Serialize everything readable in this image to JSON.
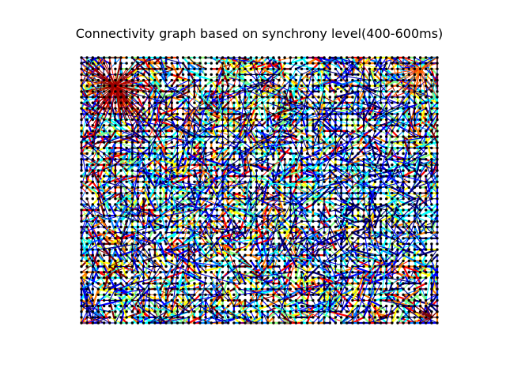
{
  "window": {
    "title": "Connectivity graph based on synchrony level(400-600ms)"
  },
  "chart_data": {
    "type": "scatter",
    "title": "Connectivity graph based on synchrony level(400-600ms)",
    "xlabel": "",
    "ylabel": "",
    "grid": false,
    "axes_visible": false,
    "node_grid": {
      "columns": 64,
      "rows": 48
    },
    "node_color": "#000000",
    "edge_colormap": "jet",
    "edge_colors": [
      "#00007f",
      "#0000ff",
      "#0080ff",
      "#00ffff",
      "#80ff80",
      "#ffff00",
      "#ff8000",
      "#ff0000",
      "#7f0000"
    ],
    "background_color": "#ffffff"
  }
}
